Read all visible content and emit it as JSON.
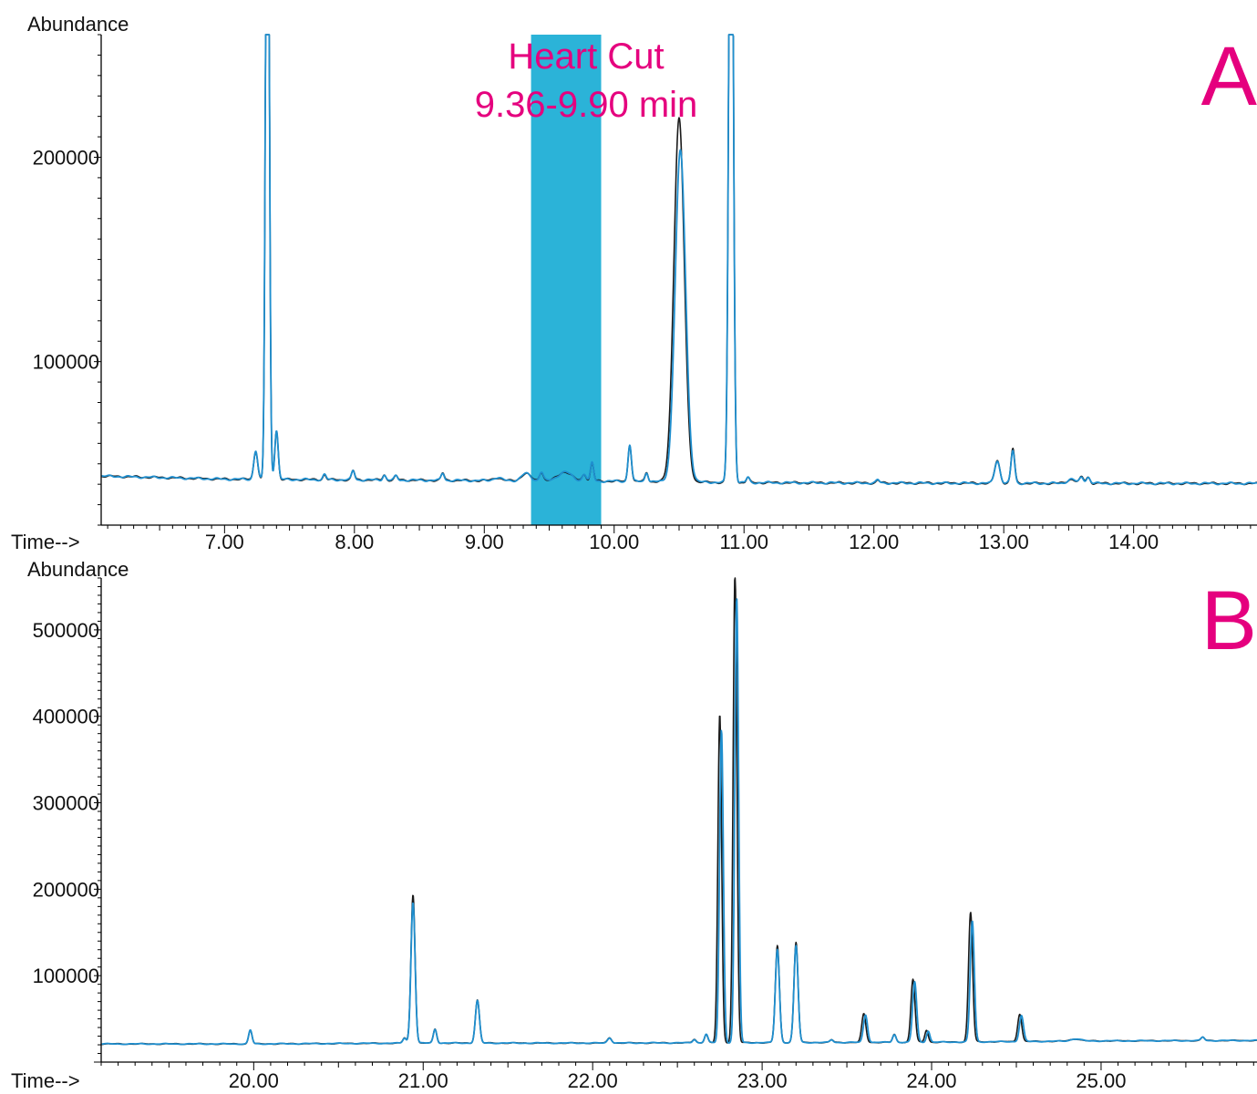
{
  "chart_data": [
    {
      "type": "line",
      "panel_label": "A",
      "ylabel": "Abundance",
      "xlabel": "Time-->",
      "xlim": [
        6.05,
        14.95
      ],
      "ylim": [
        20000,
        260000
      ],
      "x_ticks": [
        7.0,
        8.0,
        9.0,
        10.0,
        11.0,
        12.0,
        13.0,
        14.0
      ],
      "x_tick_labels": [
        "7.00",
        "8.00",
        "9.00",
        "10.00",
        "11.00",
        "12.00",
        "13.00",
        "14.00"
      ],
      "y_ticks": [
        100000,
        200000
      ],
      "y_tick_labels": [
        "100000",
        "200000"
      ],
      "highlight": {
        "x_start": 9.36,
        "x_end": 9.9,
        "color": "#2bb3d8"
      },
      "annotation": [
        "Heart Cut",
        "9.36-9.90 min"
      ],
      "baseline": {
        "x": [
          6.05,
          7.0,
          9.0,
          10.0,
          11.0,
          12.0,
          13.0,
          14.0,
          14.95
        ],
        "y": [
          44000,
          42500,
          41800,
          41500,
          40800,
          40600,
          40500,
          40400,
          40400
        ]
      },
      "series": [
        {
          "color": "#1a1a1a",
          "peaks": [
            {
              "t": 7.24,
              "h": 14000,
              "w": 0.015
            },
            {
              "t": 7.33,
              "h": 420000,
              "w": 0.013
            },
            {
              "t": 7.4,
              "h": 24000,
              "w": 0.013
            },
            {
              "t": 7.77,
              "h": 2500,
              "w": 0.012
            },
            {
              "t": 7.99,
              "h": 4500,
              "w": 0.012
            },
            {
              "t": 8.23,
              "h": 2500,
              "w": 0.012
            },
            {
              "t": 8.32,
              "h": 2000,
              "w": 0.012
            },
            {
              "t": 8.68,
              "h": 3500,
              "w": 0.012
            },
            {
              "t": 9.1,
              "h": 1500,
              "w": 0.03
            },
            {
              "t": 9.32,
              "h": 3500,
              "w": 0.035
            },
            {
              "t": 9.44,
              "h": 4500,
              "w": 0.015
            },
            {
              "t": 9.62,
              "h": 4500,
              "w": 0.05
            },
            {
              "t": 9.77,
              "h": 3500,
              "w": 0.015
            },
            {
              "t": 9.83,
              "h": 9000,
              "w": 0.012
            },
            {
              "t": 10.12,
              "h": 18000,
              "w": 0.013
            },
            {
              "t": 10.25,
              "h": 4500,
              "w": 0.012
            },
            {
              "t": 10.5,
              "h": 178000,
              "w": 0.04
            },
            {
              "t": 10.9,
              "h": 400000,
              "w": 0.016
            },
            {
              "t": 11.03,
              "h": 2500,
              "w": 0.012
            },
            {
              "t": 12.03,
              "h": 1500,
              "w": 0.012
            },
            {
              "t": 12.95,
              "h": 11000,
              "w": 0.02
            },
            {
              "t": 13.07,
              "h": 17000,
              "w": 0.014
            },
            {
              "t": 13.52,
              "h": 2000,
              "w": 0.03
            },
            {
              "t": 13.6,
              "h": 3000,
              "w": 0.015
            },
            {
              "t": 13.65,
              "h": 3000,
              "w": 0.015
            }
          ]
        },
        {
          "color": "#1f8fcf",
          "peaks": [
            {
              "t": 7.24,
              "h": 14000,
              "w": 0.015
            },
            {
              "t": 7.33,
              "h": 420000,
              "w": 0.013
            },
            {
              "t": 7.4,
              "h": 24000,
              "w": 0.013
            },
            {
              "t": 7.77,
              "h": 2500,
              "w": 0.012
            },
            {
              "t": 7.99,
              "h": 4500,
              "w": 0.012
            },
            {
              "t": 8.23,
              "h": 2500,
              "w": 0.012
            },
            {
              "t": 8.32,
              "h": 2000,
              "w": 0.012
            },
            {
              "t": 8.68,
              "h": 3500,
              "w": 0.012
            },
            {
              "t": 9.1,
              "h": 1500,
              "w": 0.03
            },
            {
              "t": 9.32,
              "h": 3500,
              "w": 0.035
            },
            {
              "t": 9.44,
              "h": 4500,
              "w": 0.015
            },
            {
              "t": 9.62,
              "h": 4500,
              "w": 0.05
            },
            {
              "t": 9.77,
              "h": 3500,
              "w": 0.015
            },
            {
              "t": 9.83,
              "h": 9000,
              "w": 0.012
            },
            {
              "t": 10.12,
              "h": 18000,
              "w": 0.013
            },
            {
              "t": 10.25,
              "h": 4500,
              "w": 0.012
            },
            {
              "t": 10.51,
              "h": 162000,
              "w": 0.04
            },
            {
              "t": 10.9,
              "h": 400000,
              "w": 0.016
            },
            {
              "t": 11.03,
              "h": 2500,
              "w": 0.012
            },
            {
              "t": 12.03,
              "h": 1500,
              "w": 0.012
            },
            {
              "t": 12.95,
              "h": 11000,
              "w": 0.02
            },
            {
              "t": 13.07,
              "h": 16000,
              "w": 0.014
            },
            {
              "t": 13.52,
              "h": 2000,
              "w": 0.03
            },
            {
              "t": 13.6,
              "h": 3000,
              "w": 0.015
            },
            {
              "t": 13.65,
              "h": 3000,
              "w": 0.015
            }
          ]
        }
      ]
    },
    {
      "type": "line",
      "panel_label": "B",
      "ylabel": "Abundance",
      "xlabel": "Time-->",
      "xlim": [
        19.1,
        25.92
      ],
      "ylim": [
        0,
        560000
      ],
      "x_ticks": [
        20.0,
        21.0,
        22.0,
        23.0,
        24.0,
        25.0
      ],
      "x_tick_labels": [
        "20.00",
        "21.00",
        "22.00",
        "23.00",
        "24.00",
        "25.00"
      ],
      "y_ticks": [
        100000,
        200000,
        300000,
        400000,
        500000
      ],
      "y_tick_labels": [
        "100000",
        "200000",
        "300000",
        "400000",
        "500000"
      ],
      "baseline": {
        "x": [
          19.1,
          20.0,
          21.0,
          22.0,
          23.0,
          24.0,
          25.0,
          25.92
        ],
        "y": [
          21000,
          21000,
          22000,
          22000,
          22500,
          23000,
          24500,
          25000
        ]
      },
      "series": [
        {
          "color": "#1a1a1a",
          "peaks": [
            {
              "t": 19.98,
              "h": 16000,
              "w": 0.01
            },
            {
              "t": 20.89,
              "h": 6000,
              "w": 0.01
            },
            {
              "t": 20.94,
              "h": 172000,
              "w": 0.012
            },
            {
              "t": 21.07,
              "h": 16000,
              "w": 0.01
            },
            {
              "t": 21.32,
              "h": 50000,
              "w": 0.012
            },
            {
              "t": 22.1,
              "h": 6000,
              "w": 0.012
            },
            {
              "t": 22.6,
              "h": 4000,
              "w": 0.01
            },
            {
              "t": 22.67,
              "h": 10000,
              "w": 0.01
            },
            {
              "t": 22.75,
              "h": 380000,
              "w": 0.011
            },
            {
              "t": 22.84,
              "h": 545000,
              "w": 0.011
            },
            {
              "t": 23.09,
              "h": 112000,
              "w": 0.012
            },
            {
              "t": 23.2,
              "h": 116000,
              "w": 0.012
            },
            {
              "t": 23.41,
              "h": 3000,
              "w": 0.01
            },
            {
              "t": 23.6,
              "h": 33000,
              "w": 0.012
            },
            {
              "t": 23.78,
              "h": 9000,
              "w": 0.01
            },
            {
              "t": 23.89,
              "h": 73000,
              "w": 0.012
            },
            {
              "t": 23.97,
              "h": 14000,
              "w": 0.01
            },
            {
              "t": 24.23,
              "h": 150000,
              "w": 0.012
            },
            {
              "t": 24.52,
              "h": 32000,
              "w": 0.012
            },
            {
              "t": 24.85,
              "h": 2500,
              "w": 0.03
            },
            {
              "t": 25.6,
              "h": 4000,
              "w": 0.01
            }
          ]
        },
        {
          "color": "#1f8fcf",
          "peaks": [
            {
              "t": 19.98,
              "h": 16000,
              "w": 0.01
            },
            {
              "t": 20.89,
              "h": 6000,
              "w": 0.01
            },
            {
              "t": 20.94,
              "h": 163000,
              "w": 0.012
            },
            {
              "t": 21.07,
              "h": 16000,
              "w": 0.01
            },
            {
              "t": 21.32,
              "h": 49000,
              "w": 0.012
            },
            {
              "t": 22.1,
              "h": 6000,
              "w": 0.012
            },
            {
              "t": 22.6,
              "h": 4000,
              "w": 0.01
            },
            {
              "t": 22.67,
              "h": 10000,
              "w": 0.01
            },
            {
              "t": 22.76,
              "h": 362000,
              "w": 0.011
            },
            {
              "t": 22.85,
              "h": 515000,
              "w": 0.011
            },
            {
              "t": 23.09,
              "h": 108000,
              "w": 0.012
            },
            {
              "t": 23.2,
              "h": 112000,
              "w": 0.012
            },
            {
              "t": 23.41,
              "h": 3000,
              "w": 0.01
            },
            {
              "t": 23.61,
              "h": 32000,
              "w": 0.012
            },
            {
              "t": 23.78,
              "h": 9000,
              "w": 0.01
            },
            {
              "t": 23.9,
              "h": 70000,
              "w": 0.012
            },
            {
              "t": 23.98,
              "h": 13000,
              "w": 0.01
            },
            {
              "t": 24.24,
              "h": 140000,
              "w": 0.012
            },
            {
              "t": 24.53,
              "h": 30000,
              "w": 0.012
            },
            {
              "t": 24.85,
              "h": 2500,
              "w": 0.03
            },
            {
              "t": 25.6,
              "h": 4000,
              "w": 0.01
            }
          ]
        }
      ]
    }
  ],
  "colors": {
    "annotation": "#e5007e",
    "axis": "#000000",
    "text": "#111111"
  }
}
